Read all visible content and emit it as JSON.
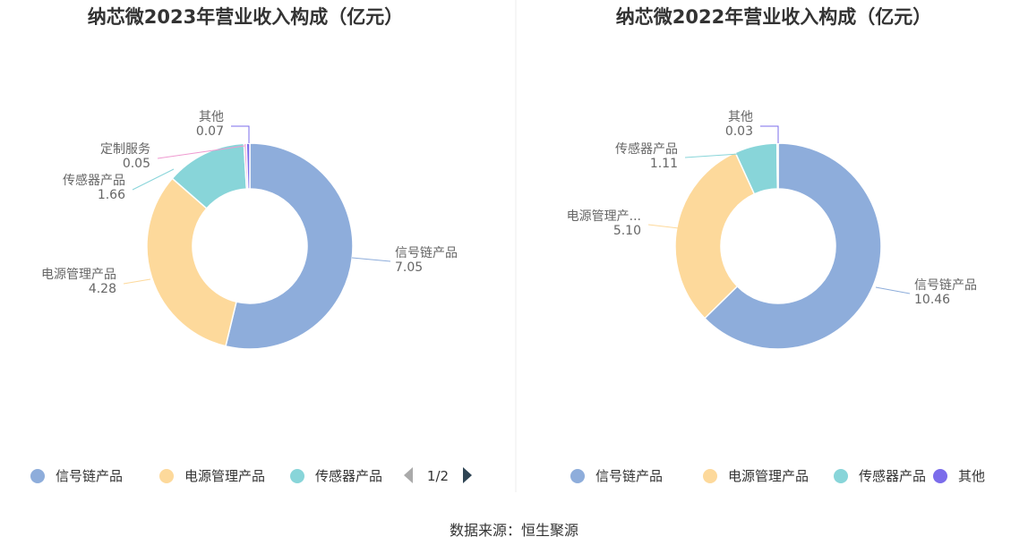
{
  "footer": {
    "source": "数据来源：恒生聚源"
  },
  "colors": {
    "信号链产品": "#8EADDB",
    "电源管理产品": "#FDD99B",
    "传感器产品": "#88D5D9",
    "定制服务": "#EF9AD0",
    "其他": "#7B6CEB"
  },
  "chart_data": [
    {
      "type": "pie",
      "variant": "donut",
      "title": "纳芯微2023年营业收入构成（亿元）",
      "categories": [
        "信号链产品",
        "电源管理产品",
        "传感器产品",
        "定制服务",
        "其他"
      ],
      "values": [
        7.05,
        4.28,
        1.66,
        0.05,
        0.07
      ],
      "value_labels": [
        "7.05",
        "4.28",
        "1.66",
        "0.05",
        "0.07"
      ],
      "slice_labels": [
        "信号链产品",
        "电源管理产品",
        "传感器产品",
        "定制服务",
        "其他"
      ],
      "legend": {
        "items": [
          "信号链产品",
          "电源管理产品",
          "传感器产品"
        ],
        "page": "1/2",
        "placement": "bottom"
      }
    },
    {
      "type": "pie",
      "variant": "donut",
      "title": "纳芯微2022年营业收入构成（亿元）",
      "categories": [
        "信号链产品",
        "电源管理产品",
        "传感器产品",
        "其他"
      ],
      "values": [
        10.46,
        5.1,
        1.11,
        0.03
      ],
      "value_labels": [
        "10.46",
        "5.10",
        "1.11",
        "0.03"
      ],
      "slice_labels": [
        "信号链产品",
        "电源管理产...",
        "传感器产品",
        "其他"
      ],
      "legend": {
        "items": [
          "信号链产品",
          "电源管理产品",
          "传感器产品",
          "其他"
        ],
        "placement": "bottom"
      }
    }
  ]
}
